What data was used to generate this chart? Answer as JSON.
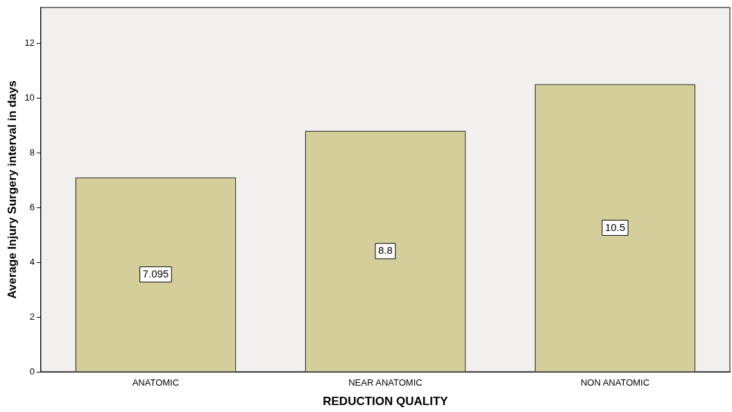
{
  "chart_data": {
    "type": "bar",
    "xlabel": "REDUCTION QUALITY",
    "ylabel": "Average Injury Surgery interval in days",
    "categories": [
      "ANATOMIC",
      "NEAR ANATOMIC",
      "NON ANATOMIC"
    ],
    "values": [
      7.095,
      8.8,
      10.5
    ],
    "color": "#d4cf9a",
    "ylim": [
      0,
      13.3
    ],
    "yticks": [
      0,
      2,
      4,
      6,
      8,
      10,
      12
    ],
    "grid": false,
    "legend": false,
    "data_labels": true
  }
}
